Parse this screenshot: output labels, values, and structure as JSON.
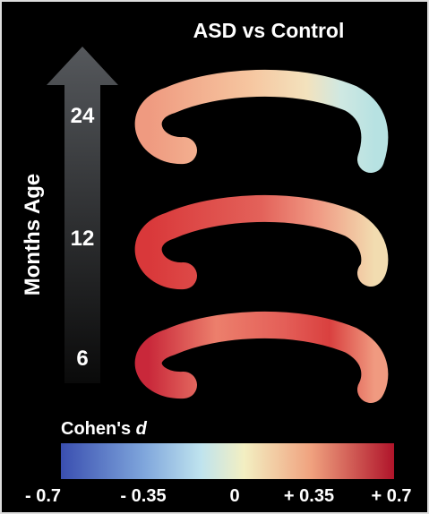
{
  "title": "ASD vs Control",
  "axis_label": "Months Age",
  "ages": [
    24,
    12,
    6
  ],
  "colorbar": {
    "label": "Cohen's",
    "label_symbol": "d",
    "ticks": [
      "- 0.7",
      "- 0.35",
      "0",
      "+ 0.35",
      "+ 0.7"
    ]
  }
}
